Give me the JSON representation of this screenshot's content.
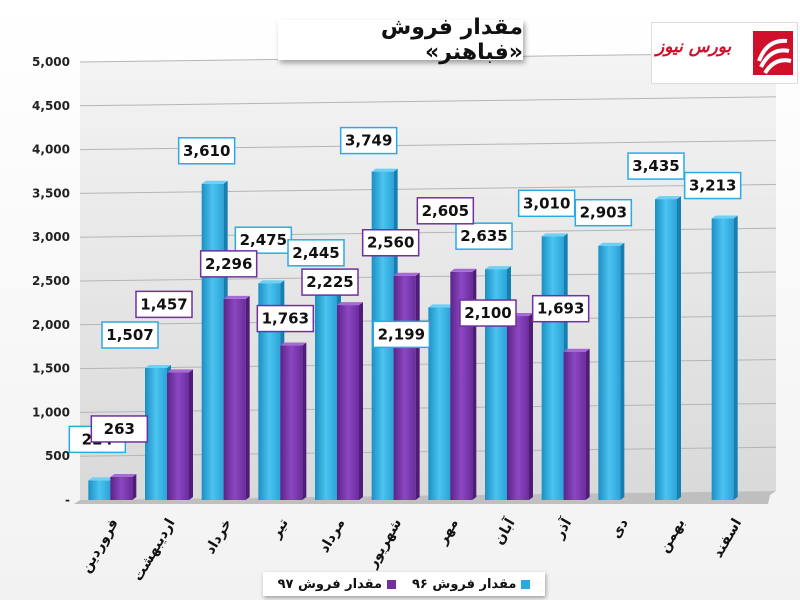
{
  "chart_data": {
    "type": "bar",
    "title": "مقدار فروش «فباهنر»",
    "categories": [
      "فروردین",
      "اردیبهشت",
      "خرداد",
      "تیر",
      "مرداد",
      "شهریور",
      "مهر",
      "آبان",
      "آذر",
      "دی",
      "بهمن",
      "اسفند"
    ],
    "series": [
      {
        "name": "مقدار فروش ۹۶",
        "color": "#29abe2",
        "label_border": "#29abe2",
        "values": [
          224,
          1507,
          3610,
          2475,
          2445,
          3749,
          2199,
          2635,
          3010,
          2903,
          3435,
          3213
        ]
      },
      {
        "name": "مقدار فروش ۹۷",
        "color": "#7030a0",
        "label_border": "#7030a0",
        "values": [
          263,
          1457,
          2296,
          1763,
          2225,
          2560,
          2605,
          2100,
          1693,
          null,
          null,
          null
        ]
      }
    ],
    "ylim": [
      0,
      5000
    ],
    "yticks": [
      "-",
      "500",
      "1,000",
      "1,500",
      "2,000",
      "2,500",
      "3,000",
      "3,500",
      "4,000",
      "4,500",
      "5,000"
    ],
    "grid": true,
    "legend_position": "bottom"
  },
  "logo": {
    "text": "بورس نیوز"
  }
}
